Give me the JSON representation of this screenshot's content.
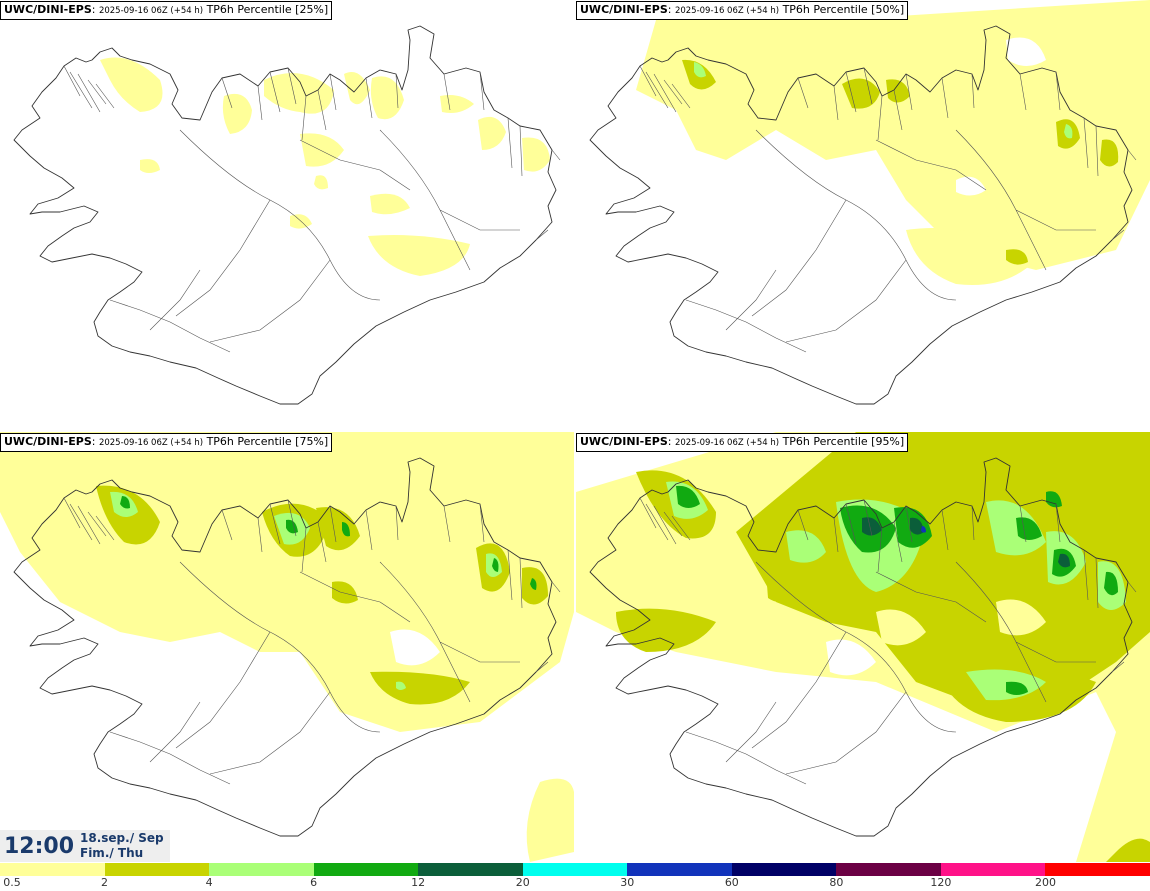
{
  "panels": [
    {
      "model": "UWC/DINI-EPS",
      "run": "2025-09-16 06Z (+54 h)",
      "label": "TP6h Percentile [25%]"
    },
    {
      "model": "UWC/DINI-EPS",
      "run": "2025-09-16 06Z (+54 h)",
      "label": "TP6h Percentile [50%]"
    },
    {
      "model": "UWC/DINI-EPS",
      "run": "2025-09-16 06Z (+54 h)",
      "label": "TP6h Percentile [75%]"
    },
    {
      "model": "UWC/DINI-EPS",
      "run": "2025-09-16 06Z (+54 h)",
      "label": "TP6h Percentile [95%]"
    }
  ],
  "valid_time": {
    "time": "12:00",
    "date_line1": "18.sep./ Sep",
    "date_line2": "Fim./ Thu"
  },
  "colorbar": {
    "colors": [
      "#ffff99",
      "#c8d400",
      "#aaff77",
      "#11aa11",
      "#0b5e3a",
      "#00ffee",
      "#1133bb",
      "#000066",
      "#6b0044",
      "#ff1188",
      "#ff0000"
    ],
    "ticks": [
      "0.5",
      "2",
      "4",
      "6",
      "12",
      "20",
      "30",
      "60",
      "80",
      "120",
      "200"
    ]
  }
}
